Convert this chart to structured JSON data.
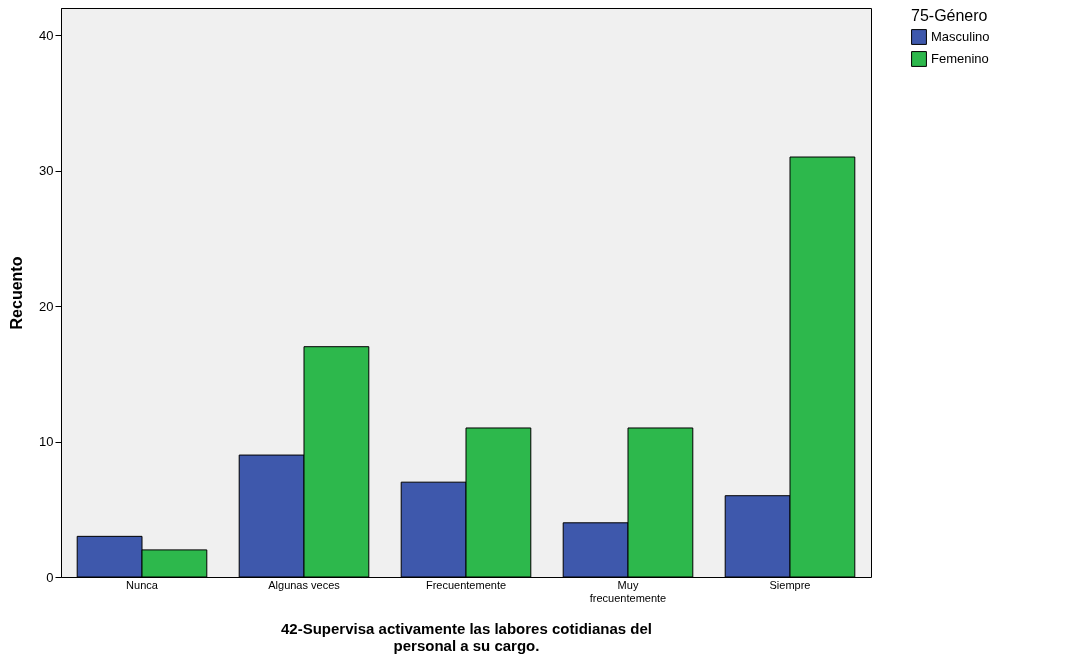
{
  "chart_data": {
    "type": "bar",
    "xlabel": "42-Supervisa activamente las labores cotidianas del personal a su cargo.",
    "ylabel": "Recuento",
    "legend_title": "75-Género",
    "categories": [
      "Nunca",
      "Algunas veces",
      "Frecuentemente",
      "Muy frecuentemente",
      "Siempre"
    ],
    "series": [
      {
        "name": "Masculino",
        "color": "#3e58ac",
        "values": [
          3,
          9,
          7,
          4,
          6
        ]
      },
      {
        "name": "Femenino",
        "color": "#2db84c",
        "values": [
          2,
          17,
          11,
          11,
          31
        ]
      }
    ],
    "ylim": [
      0,
      42
    ],
    "yticks": [
      0,
      10,
      20,
      30,
      40
    ],
    "grid": false,
    "legend": "right"
  }
}
